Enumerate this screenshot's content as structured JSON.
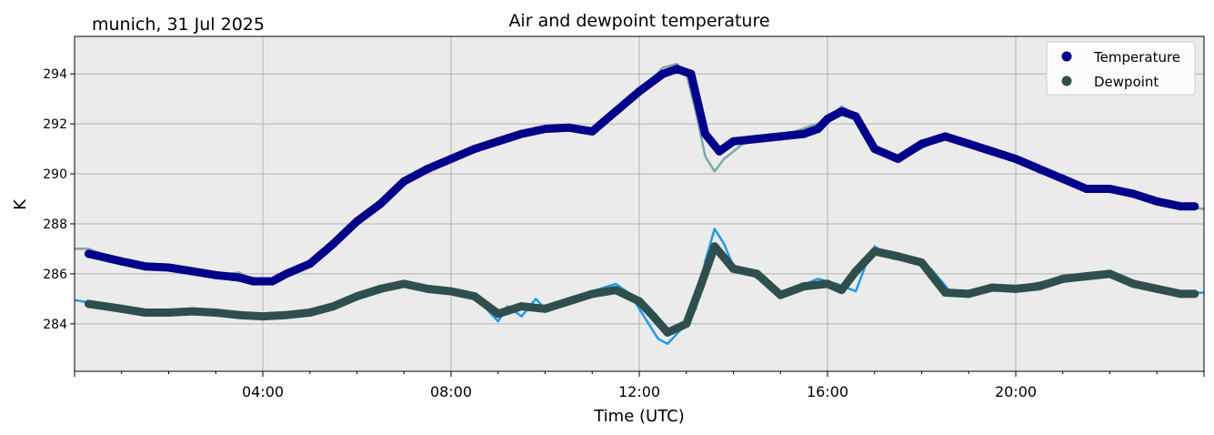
{
  "chart_data": {
    "type": "scatter",
    "title": "Air and dewpoint temperature",
    "location_label": "munich, 31 Jul 2025",
    "xlabel": "Time (UTC)",
    "ylabel": "K",
    "xlim": [
      0,
      24
    ],
    "ylim": [
      282.1,
      295.5
    ],
    "grid": true,
    "legend_position": "top-right",
    "x_ticks": [
      {
        "value": 4,
        "label": "04:00"
      },
      {
        "value": 8,
        "label": "08:00"
      },
      {
        "value": 12,
        "label": "12:00"
      },
      {
        "value": 16,
        "label": "16:00"
      },
      {
        "value": 20,
        "label": "20:00"
      }
    ],
    "y_ticks": [
      {
        "value": 284,
        "label": "284"
      },
      {
        "value": 286,
        "label": "286"
      },
      {
        "value": 288,
        "label": "288"
      },
      {
        "value": 290,
        "label": "290"
      },
      {
        "value": 292,
        "label": "292"
      },
      {
        "value": 294,
        "label": "294"
      }
    ],
    "colors": {
      "background": "#ebebeb",
      "grid": "#b0b0b0",
      "temperature": "#00008b",
      "temperature_raw": "#7fa8a8",
      "dewpoint": "#2f4f4f",
      "dewpoint_raw": "#1e9be8"
    },
    "series": [
      {
        "name": "Temperature",
        "color": "#00008b",
        "x": [
          0.3,
          1.0,
          1.5,
          2.0,
          2.5,
          3.0,
          3.5,
          3.8,
          4.2,
          4.5,
          5.0,
          5.5,
          6.0,
          6.5,
          7.0,
          7.5,
          8.0,
          8.5,
          9.0,
          9.5,
          10.0,
          10.5,
          11.0,
          11.5,
          12.0,
          12.5,
          12.8,
          13.1,
          13.4,
          13.7,
          14.0,
          14.5,
          15.0,
          15.5,
          15.8,
          16.0,
          16.3,
          16.6,
          17.0,
          17.5,
          18.0,
          18.5,
          19.0,
          19.5,
          20.0,
          20.5,
          21.0,
          21.5,
          22.0,
          22.5,
          23.0,
          23.5,
          23.8
        ],
        "y": [
          286.8,
          286.5,
          286.3,
          286.25,
          286.1,
          285.95,
          285.85,
          285.7,
          285.7,
          286.0,
          286.4,
          287.2,
          288.1,
          288.8,
          289.7,
          290.2,
          290.6,
          291.0,
          291.3,
          291.6,
          291.8,
          291.85,
          291.7,
          292.5,
          293.3,
          294.0,
          294.2,
          294.0,
          291.6,
          290.9,
          291.3,
          291.4,
          291.5,
          291.6,
          291.8,
          292.2,
          292.5,
          292.3,
          291.0,
          290.6,
          291.2,
          291.5,
          291.2,
          290.9,
          290.6,
          290.2,
          289.8,
          289.4,
          289.4,
          289.2,
          288.9,
          288.7,
          288.7
        ]
      },
      {
        "name": "Dewpoint",
        "color": "#2f4f4f",
        "x": [
          0.3,
          1.0,
          1.5,
          2.0,
          2.5,
          3.0,
          3.5,
          4.0,
          4.5,
          5.0,
          5.5,
          6.0,
          6.5,
          7.0,
          7.5,
          8.0,
          8.5,
          9.0,
          9.5,
          10.0,
          10.5,
          11.0,
          11.5,
          12.0,
          12.3,
          12.6,
          13.0,
          13.3,
          13.6,
          14.0,
          14.5,
          15.0,
          15.5,
          16.0,
          16.3,
          16.6,
          17.0,
          17.5,
          18.0,
          18.5,
          19.0,
          19.5,
          20.0,
          20.5,
          21.0,
          21.5,
          22.0,
          22.5,
          23.0,
          23.5,
          23.8
        ],
        "y": [
          284.8,
          284.6,
          284.45,
          284.45,
          284.5,
          284.45,
          284.35,
          284.3,
          284.35,
          284.45,
          284.7,
          285.1,
          285.4,
          285.6,
          285.4,
          285.3,
          285.1,
          284.4,
          284.7,
          284.6,
          284.9,
          285.2,
          285.35,
          284.9,
          284.3,
          283.65,
          284.0,
          285.5,
          287.1,
          286.2,
          286.0,
          285.15,
          285.5,
          285.6,
          285.35,
          286.1,
          286.9,
          286.7,
          286.45,
          285.25,
          285.2,
          285.45,
          285.4,
          285.5,
          285.8,
          285.9,
          286.0,
          285.6,
          285.4,
          285.2,
          285.2
        ]
      }
    ],
    "raw_series": [
      {
        "name": "temperature_raw",
        "color": "#7fa8a8",
        "x": [
          0.0,
          0.3,
          1.0,
          2.0,
          3.0,
          3.5,
          3.8,
          4.2,
          5.0,
          6.0,
          7.0,
          8.0,
          8.5,
          9.0,
          10.0,
          11.0,
          11.5,
          12.0,
          12.5,
          12.8,
          13.0,
          13.2,
          13.4,
          13.6,
          13.8,
          14.2,
          15.0,
          16.0,
          16.3,
          16.6,
          17.0,
          17.5,
          18.5,
          19.5,
          20.5,
          21.5,
          22.5,
          23.5,
          24.0
        ],
        "y": [
          287.0,
          287.0,
          286.5,
          286.25,
          285.95,
          286.05,
          285.75,
          285.7,
          286.45,
          288.1,
          289.7,
          290.6,
          291.1,
          291.4,
          291.85,
          291.75,
          292.55,
          293.3,
          294.25,
          294.4,
          294.0,
          292.5,
          290.7,
          290.1,
          290.6,
          291.2,
          291.5,
          292.15,
          292.7,
          292.35,
          291.0,
          290.55,
          291.5,
          290.9,
          290.2,
          289.4,
          289.2,
          288.7,
          288.6
        ]
      },
      {
        "name": "dewpoint_raw",
        "color": "#1e9be8",
        "x": [
          0.0,
          0.3,
          1.0,
          2.0,
          3.0,
          4.0,
          5.0,
          6.0,
          7.0,
          7.5,
          8.0,
          8.5,
          8.8,
          9.0,
          9.2,
          9.5,
          9.8,
          10.0,
          10.5,
          11.0,
          11.5,
          11.8,
          12.0,
          12.2,
          12.4,
          12.6,
          12.8,
          13.0,
          13.2,
          13.4,
          13.6,
          13.8,
          14.0,
          14.3,
          14.6,
          15.0,
          15.4,
          15.8,
          16.2,
          16.6,
          16.8,
          17.0,
          17.4,
          17.8,
          18.2,
          18.6,
          19.0,
          20.0,
          21.0,
          22.0,
          23.0,
          23.5,
          24.0
        ],
        "y": [
          284.95,
          284.85,
          284.6,
          284.45,
          284.45,
          284.3,
          284.45,
          285.1,
          285.6,
          285.4,
          285.3,
          285.2,
          284.5,
          284.1,
          284.7,
          284.3,
          285.0,
          284.6,
          285.0,
          285.3,
          285.6,
          285.2,
          284.6,
          284.0,
          283.4,
          283.2,
          283.6,
          284.0,
          284.6,
          286.5,
          287.8,
          287.2,
          286.3,
          286.1,
          285.7,
          285.2,
          285.5,
          285.8,
          285.6,
          285.3,
          286.3,
          287.1,
          286.6,
          286.6,
          286.2,
          285.3,
          285.2,
          285.45,
          285.85,
          286.0,
          285.45,
          285.2,
          285.25
        ]
      }
    ]
  }
}
